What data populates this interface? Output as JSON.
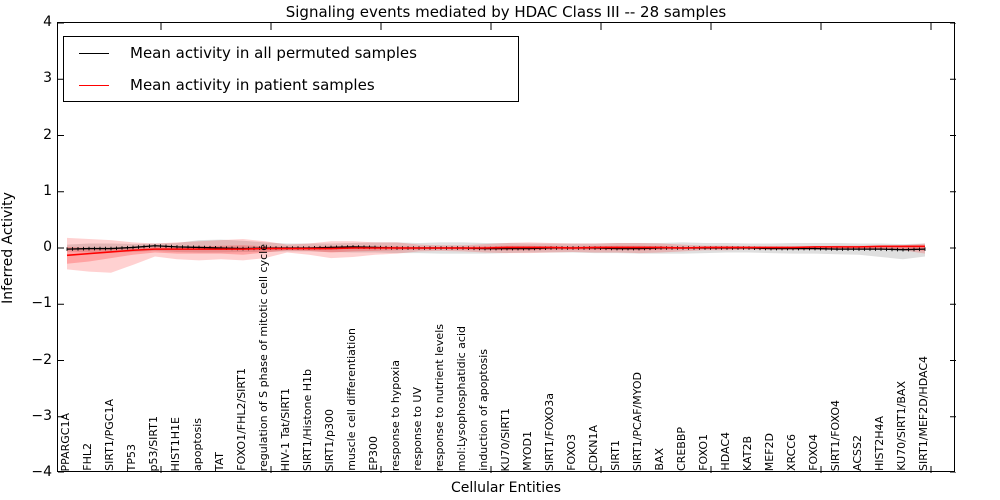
{
  "chart_data": {
    "type": "line",
    "title": "Signaling events mediated by HDAC Class III -- 28 samples",
    "xlabel": "Cellular Entities",
    "ylabel": "Inferred Activity",
    "ylim": [
      -4,
      4
    ],
    "yticks": [
      "4",
      "3",
      "2",
      "1",
      "0",
      "−1",
      "−2",
      "−3",
      "−4"
    ],
    "grid": false,
    "legend_position": "upper left",
    "categories": [
      "PPARGC1A",
      "FHL2",
      "SIRT1/PGC1A",
      "TP53",
      "p53/SIRT1",
      "HIST1H1E",
      "apoptosis",
      "TAT",
      "FOXO1/FHL2/SIRT1",
      "regulation of S phase of mitotic cell cycle",
      "HIV-1 Tat/SIRT1",
      "SIRT1/Histone H1b",
      "SIRT1/p300",
      "muscle cell differentiation",
      "EP300",
      "response to hypoxia",
      "response to UV",
      "response to nutrient levels",
      "mol:Lysophosphatidic acid",
      "induction of apoptosis",
      "KU70/SIRT1",
      "MYOD1",
      "SIRT1/FOXO3a",
      "FOXO3",
      "CDKN1A",
      "SIRT1",
      "SIRT1/PCAF/MYOD",
      "BAX",
      "CREBBP",
      "FOXO1",
      "HDAC4",
      "KAT2B",
      "MEF2D",
      "XRCC6",
      "FOXO4",
      "SIRT1/FOXO4",
      "ACSS2",
      "HIST2H4A",
      "KU70/SIRT1/BAX",
      "SIRT1/MEF2D/HDAC4"
    ],
    "series": [
      {
        "name": "Mean activity in all permuted samples",
        "color": "#000000",
        "style": "solid-with-dash-markers",
        "values": [
          -0.02,
          -0.01,
          -0.01,
          0.01,
          0.04,
          0.02,
          0.01,
          0.0,
          -0.01,
          0.0,
          0.0,
          0.0,
          0.01,
          0.02,
          0.01,
          0.0,
          0.0,
          0.0,
          0.0,
          -0.01,
          -0.01,
          -0.01,
          0.0,
          0.0,
          0.0,
          -0.01,
          -0.01,
          0.0,
          0.0,
          0.0,
          0.0,
          0.0,
          -0.01,
          -0.01,
          -0.01,
          -0.02,
          -0.02,
          -0.02,
          -0.03,
          -0.02
        ]
      },
      {
        "name": "Mean activity in patient samples",
        "color": "#ff0000",
        "style": "solid",
        "values": [
          -0.13,
          -0.1,
          -0.07,
          -0.04,
          -0.02,
          -0.02,
          -0.02,
          -0.02,
          -0.02,
          -0.01,
          -0.01,
          -0.01,
          -0.01,
          0.0,
          0.0,
          0.0,
          0.0,
          0.0,
          0.0,
          0.0,
          0.01,
          0.01,
          0.01,
          0.0,
          0.01,
          0.01,
          0.01,
          0.01,
          0.0,
          0.01,
          0.01,
          0.01,
          0.01,
          0.01,
          0.02,
          0.02,
          0.02,
          0.03,
          0.03,
          0.03
        ]
      }
    ],
    "bands": [
      {
        "name": "permuted-samples-band",
        "color": "rgba(128,128,128,0.25)",
        "upper": [
          0.06,
          0.08,
          0.08,
          0.07,
          0.08,
          0.09,
          0.14,
          0.15,
          0.13,
          0.1,
          0.08,
          0.08,
          0.08,
          0.09,
          0.1,
          0.1,
          0.09,
          0.1,
          0.1,
          0.09,
          0.09,
          0.08,
          0.08,
          0.08,
          0.08,
          0.09,
          0.09,
          0.09,
          0.1,
          0.09,
          0.09,
          0.08,
          0.08,
          0.09,
          0.09,
          0.09,
          0.08,
          0.08,
          0.07,
          0.08
        ],
        "lower": [
          -0.06,
          -0.08,
          -0.08,
          -0.07,
          -0.05,
          -0.07,
          -0.08,
          -0.08,
          -0.07,
          -0.07,
          -0.06,
          -0.06,
          -0.07,
          -0.08,
          -0.08,
          -0.09,
          -0.09,
          -0.1,
          -0.1,
          -0.1,
          -0.09,
          -0.08,
          -0.08,
          -0.08,
          -0.09,
          -0.09,
          -0.1,
          -0.1,
          -0.1,
          -0.09,
          -0.08,
          -0.08,
          -0.09,
          -0.1,
          -0.1,
          -0.11,
          -0.12,
          -0.16,
          -0.2,
          -0.15
        ]
      },
      {
        "name": "patient-samples-band-outer",
        "color": "rgba(255,0,0,0.18)",
        "upper": [
          0.18,
          0.16,
          0.14,
          0.1,
          0.08,
          0.1,
          0.12,
          0.14,
          0.16,
          0.12,
          0.06,
          0.08,
          0.12,
          0.12,
          0.1,
          0.1,
          0.06,
          0.05,
          0.05,
          0.07,
          0.09,
          0.1,
          0.09,
          0.08,
          0.08,
          0.09,
          0.09,
          0.08,
          0.06,
          0.04,
          0.04,
          0.03,
          0.03,
          0.03,
          0.03,
          0.04,
          0.04,
          0.04,
          0.05,
          0.08
        ],
        "lower": [
          -0.38,
          -0.42,
          -0.44,
          -0.3,
          -0.15,
          -0.2,
          -0.22,
          -0.2,
          -0.22,
          -0.18,
          -0.08,
          -0.12,
          -0.18,
          -0.16,
          -0.12,
          -0.1,
          -0.06,
          -0.05,
          -0.06,
          -0.08,
          -0.09,
          -0.09,
          -0.08,
          -0.07,
          -0.08,
          -0.08,
          -0.09,
          -0.08,
          -0.06,
          -0.04,
          -0.04,
          -0.03,
          -0.03,
          -0.03,
          -0.03,
          -0.03,
          -0.03,
          -0.03,
          -0.04,
          -0.1
        ]
      },
      {
        "name": "patient-samples-band-inner",
        "color": "rgba(255,0,0,0.22)",
        "upper": [
          0.02,
          0.0,
          -0.01,
          0.0,
          0.02,
          0.02,
          0.03,
          0.04,
          0.05,
          0.03,
          0.02,
          0.02,
          0.03,
          0.04,
          0.03,
          0.03,
          0.02,
          0.02,
          0.02,
          0.03,
          0.04,
          0.04,
          0.03,
          0.03,
          0.03,
          0.04,
          0.04,
          0.03,
          0.02,
          0.02,
          0.02,
          0.01,
          0.01,
          0.01,
          0.01,
          0.02,
          0.02,
          0.02,
          0.02,
          0.04
        ],
        "lower": [
          -0.28,
          -0.24,
          -0.18,
          -0.12,
          -0.08,
          -0.1,
          -0.1,
          -0.1,
          -0.12,
          -0.08,
          -0.04,
          -0.05,
          -0.08,
          -0.06,
          -0.05,
          -0.04,
          -0.03,
          -0.02,
          -0.03,
          -0.03,
          -0.04,
          -0.04,
          -0.03,
          -0.03,
          -0.03,
          -0.03,
          -0.04,
          -0.03,
          -0.02,
          -0.02,
          -0.02,
          -0.01,
          -0.01,
          -0.01,
          -0.01,
          -0.01,
          -0.01,
          -0.01,
          -0.02,
          -0.05
        ]
      }
    ]
  }
}
